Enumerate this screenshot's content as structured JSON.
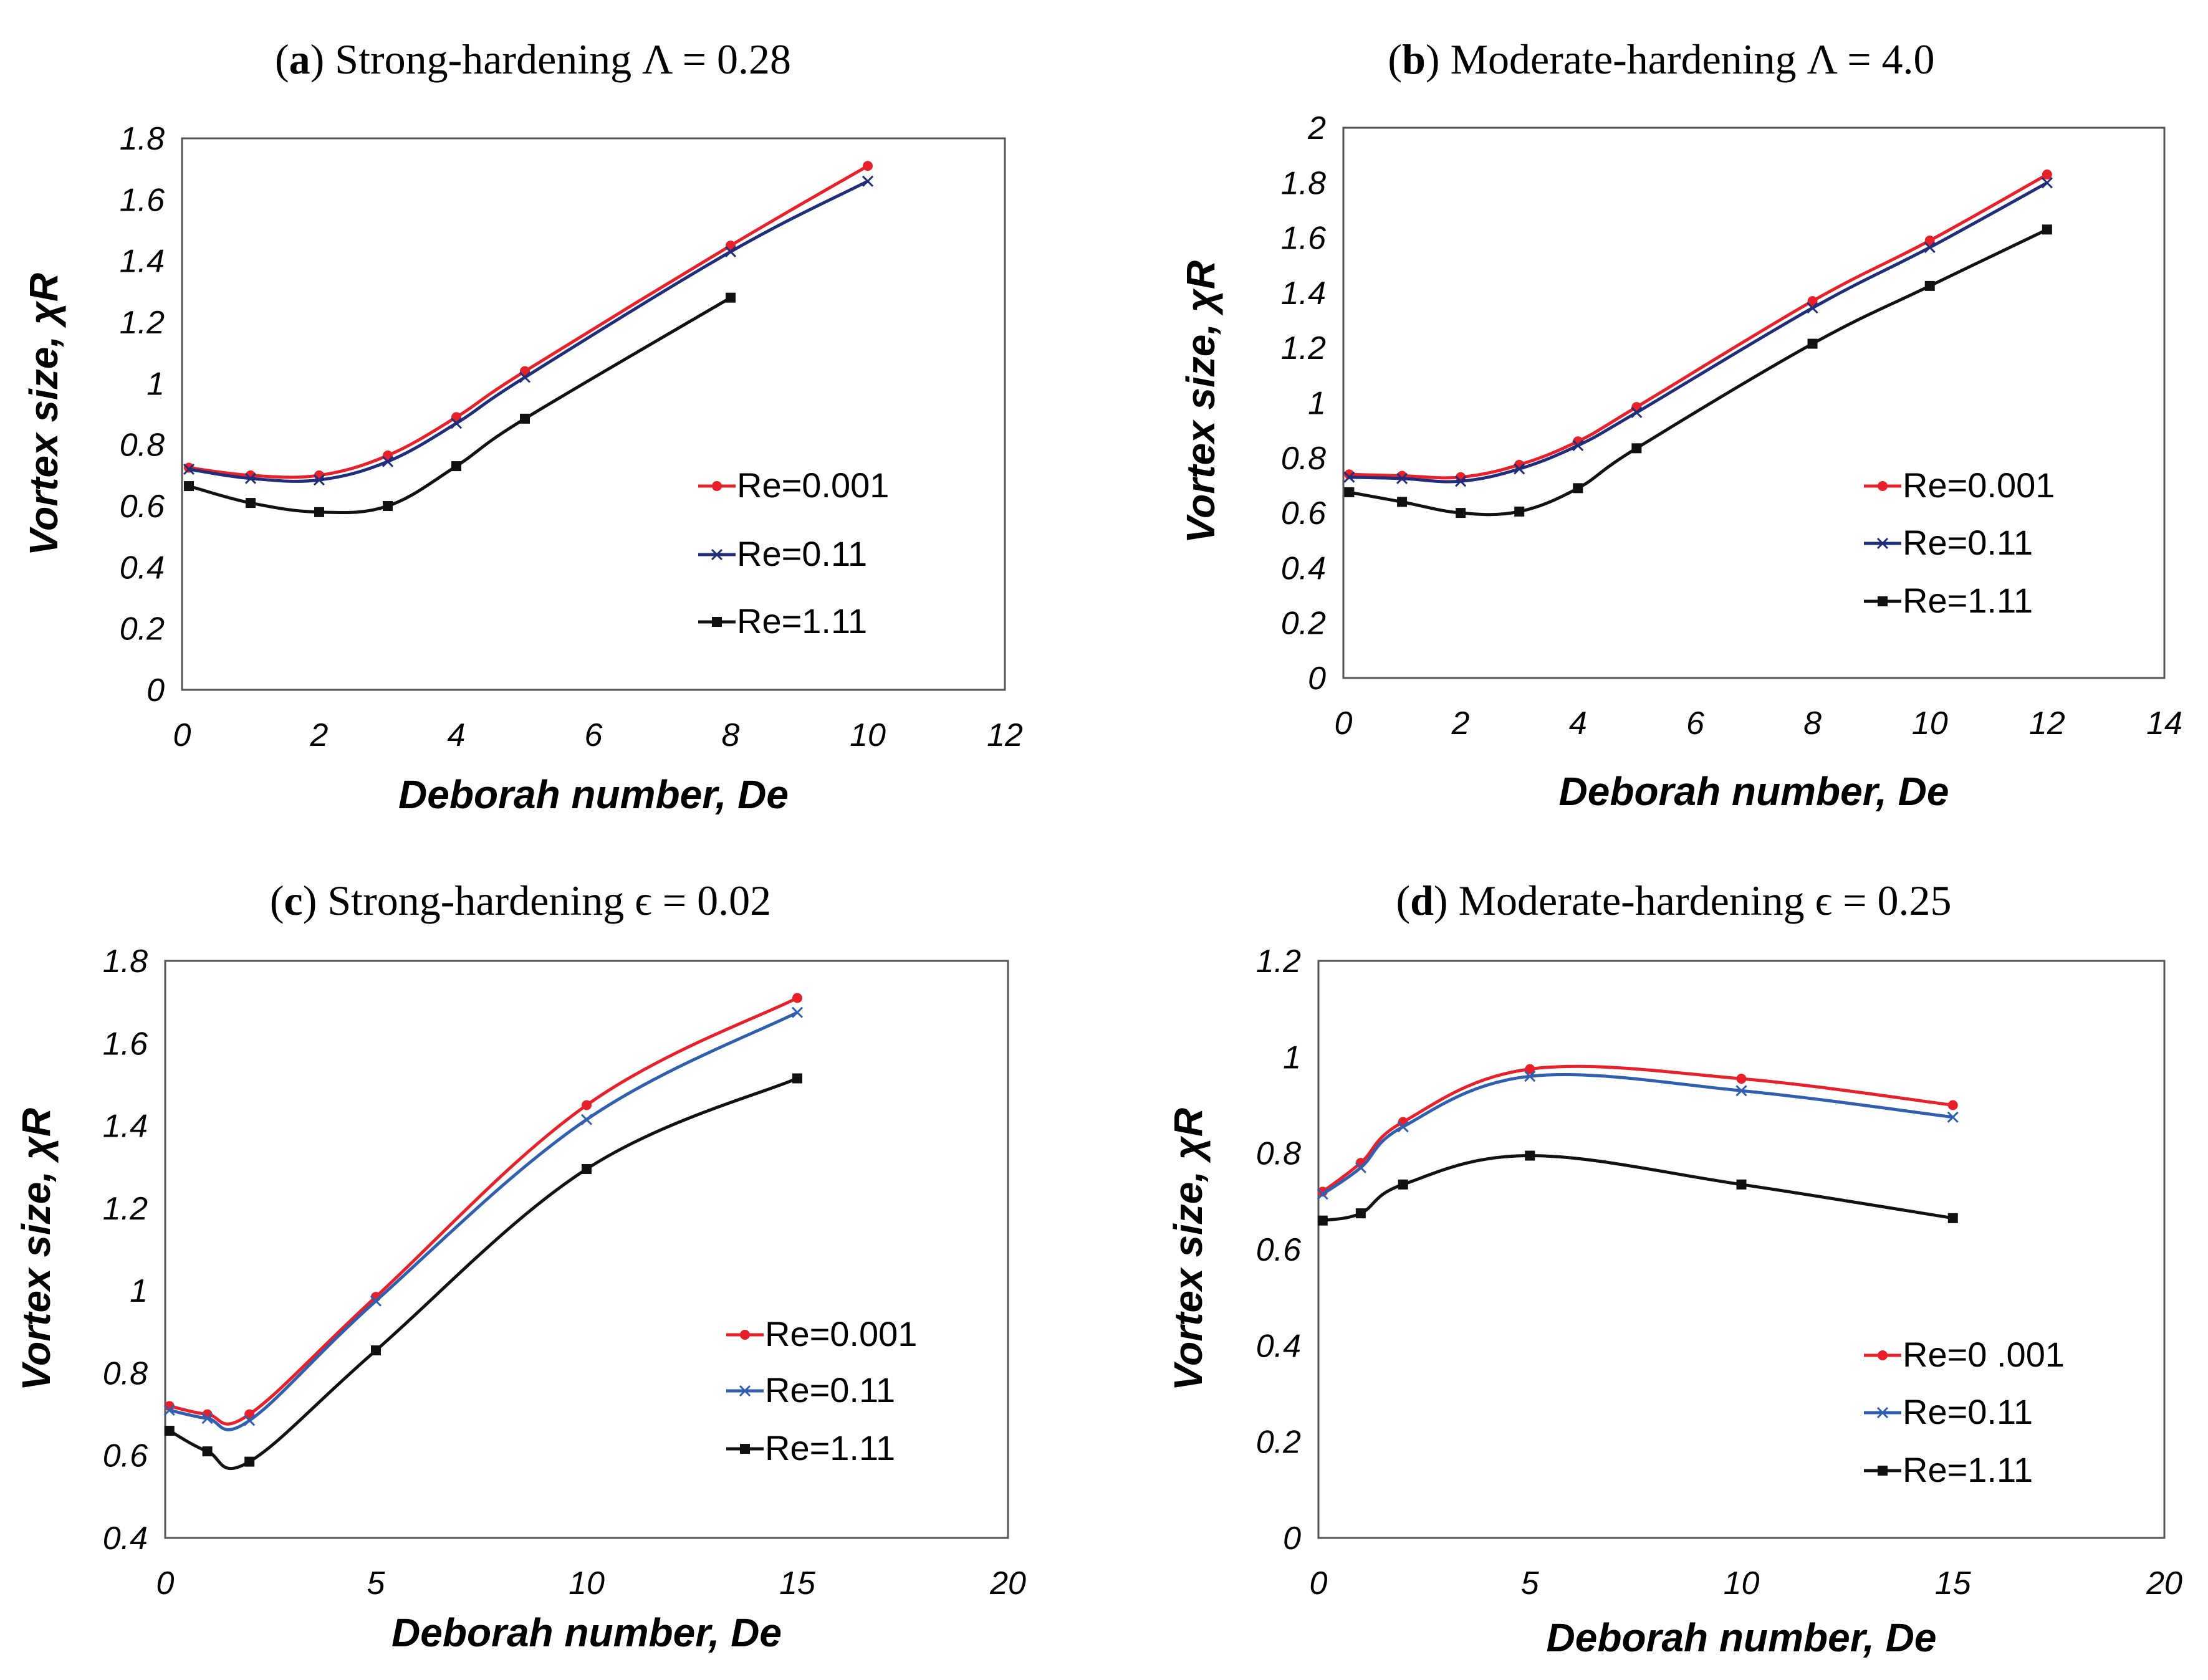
{
  "chart_data": [
    {
      "type": "line",
      "panel_label": "a",
      "title": "Strong-hardening Λ = 0.28",
      "xlabel": "Deborah number, De",
      "ylabel": "Vortex size, χR",
      "xlim": [
        0,
        12
      ],
      "ylim": [
        0,
        1.8
      ],
      "xticks": [
        "0",
        "2",
        "4",
        "6",
        "8",
        "10",
        "12"
      ],
      "yticks": [
        "0",
        "0.2",
        "0.4",
        "0.6",
        "0.8",
        "1",
        "1.2",
        "1.4",
        "1.6",
        "1.8"
      ],
      "legend_position": "right",
      "series": [
        {
          "name": "Re=0.001",
          "color": "#e8202a",
          "marker": "circle",
          "x": [
            0.1,
            1,
            2,
            3,
            4,
            5,
            8,
            10
          ],
          "y": [
            0.725,
            0.7,
            0.7,
            0.765,
            0.89,
            1.04,
            1.45,
            1.71
          ]
        },
        {
          "name": "Re=0.11",
          "color": "#1f2d7a",
          "marker": "x",
          "x": [
            0.1,
            1,
            2,
            3,
            4,
            5,
            8,
            10
          ],
          "y": [
            0.72,
            0.69,
            0.685,
            0.745,
            0.87,
            1.02,
            1.43,
            1.66
          ]
        },
        {
          "name": "Re=1.11",
          "color": "#111111",
          "marker": "square",
          "x": [
            0.1,
            1,
            2,
            3,
            4,
            5,
            8
          ],
          "y": [
            0.665,
            0.61,
            0.58,
            0.6,
            0.73,
            0.885,
            1.28
          ]
        }
      ]
    },
    {
      "type": "line",
      "panel_label": "b",
      "title": "Moderate-hardening Λ = 4.0",
      "xlabel": "Deborah number, De",
      "ylabel": "Vortex size, χR",
      "xlim": [
        0,
        14
      ],
      "ylim": [
        0,
        2
      ],
      "xticks": [
        "0",
        "2",
        "4",
        "6",
        "8",
        "10",
        "12",
        "14"
      ],
      "yticks": [
        "0",
        "0.2",
        "0.4",
        "0.6",
        "0.8",
        "1",
        "1.2",
        "1.4",
        "1.6",
        "1.8",
        "2"
      ],
      "legend_position": "right",
      "series": [
        {
          "name": "Re=0.001",
          "color": "#e8202a",
          "marker": "circle",
          "x": [
            0.1,
            1,
            2,
            3,
            4,
            5,
            8,
            10,
            12
          ],
          "y": [
            0.74,
            0.735,
            0.73,
            0.775,
            0.86,
            0.985,
            1.37,
            1.59,
            1.83
          ]
        },
        {
          "name": "Re=0.11",
          "color": "#1f2d7a",
          "marker": "x",
          "x": [
            0.1,
            1,
            2,
            3,
            4,
            5,
            8,
            10,
            12
          ],
          "y": [
            0.73,
            0.725,
            0.715,
            0.76,
            0.845,
            0.965,
            1.345,
            1.565,
            1.8
          ]
        },
        {
          "name": "Re=1.11",
          "color": "#111111",
          "marker": "square",
          "x": [
            0.1,
            1,
            2,
            3,
            4,
            5,
            8,
            10,
            12
          ],
          "y": [
            0.675,
            0.64,
            0.6,
            0.605,
            0.69,
            0.835,
            1.215,
            1.425,
            1.63
          ]
        }
      ]
    },
    {
      "type": "line",
      "panel_label": "c",
      "title": "Strong-hardening ϵ = 0.02",
      "xlabel": "Deborah number, De",
      "ylabel": "Vortex size, χR",
      "xlim": [
        0,
        20
      ],
      "ylim": [
        0.4,
        1.8
      ],
      "xticks": [
        "0",
        "5",
        "10",
        "15",
        "20"
      ],
      "yticks": [
        "0.4",
        "0.6",
        "0.8",
        "1",
        "1.2",
        "1.4",
        "1.6",
        "1.8"
      ],
      "legend_position": "right",
      "series": [
        {
          "name": "Re=0.001",
          "color": "#e8202a",
          "marker": "circle",
          "x": [
            0.1,
            1,
            2,
            5,
            10,
            15
          ],
          "y": [
            0.72,
            0.7,
            0.7,
            0.985,
            1.45,
            1.71
          ]
        },
        {
          "name": "Re=0.11",
          "color": "#2f5fae",
          "marker": "x",
          "x": [
            0.1,
            1,
            2,
            5,
            10,
            15
          ],
          "y": [
            0.71,
            0.69,
            0.685,
            0.975,
            1.415,
            1.675
          ]
        },
        {
          "name": "Re=1.11",
          "color": "#111111",
          "marker": "square",
          "x": [
            0.1,
            1,
            2,
            5,
            10,
            15
          ],
          "y": [
            0.66,
            0.61,
            0.585,
            0.855,
            1.295,
            1.515
          ]
        }
      ]
    },
    {
      "type": "line",
      "panel_label": "d",
      "title": "Moderate-hardening ϵ = 0.25",
      "xlabel": "Deborah number, De",
      "ylabel": "Vortex size, χR",
      "xlim": [
        0,
        20
      ],
      "ylim": [
        0,
        1.2
      ],
      "xticks": [
        "0",
        "5",
        "10",
        "15",
        "20"
      ],
      "yticks": [
        "0",
        "0.2",
        "0.4",
        "0.6",
        "0.8",
        "1",
        "1.2"
      ],
      "legend_position": "right",
      "series": [
        {
          "name": "Re=0 .001",
          "color": "#e8202a",
          "marker": "circle",
          "x": [
            0.1,
            1,
            2,
            5,
            10,
            15
          ],
          "y": [
            0.72,
            0.78,
            0.865,
            0.975,
            0.955,
            0.9
          ]
        },
        {
          "name": "Re=0.11",
          "color": "#2f5fae",
          "marker": "x",
          "x": [
            0.1,
            1,
            2,
            5,
            10,
            15
          ],
          "y": [
            0.715,
            0.77,
            0.855,
            0.96,
            0.93,
            0.875
          ]
        },
        {
          "name": "Re=1.11",
          "color": "#111111",
          "marker": "square",
          "x": [
            0.1,
            1,
            2,
            5,
            10,
            15
          ],
          "y": [
            0.66,
            0.675,
            0.735,
            0.795,
            0.735,
            0.665
          ]
        }
      ]
    }
  ]
}
